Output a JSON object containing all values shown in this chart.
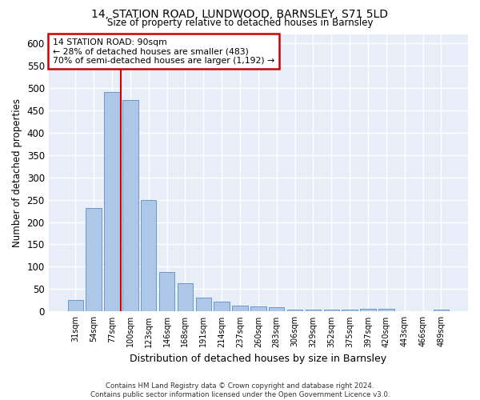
{
  "title1": "14, STATION ROAD, LUNDWOOD, BARNSLEY, S71 5LD",
  "title2": "Size of property relative to detached houses in Barnsley",
  "xlabel": "Distribution of detached houses by size in Barnsley",
  "ylabel": "Number of detached properties",
  "categories": [
    "31sqm",
    "54sqm",
    "77sqm",
    "100sqm",
    "123sqm",
    "146sqm",
    "168sqm",
    "191sqm",
    "214sqm",
    "237sqm",
    "260sqm",
    "283sqm",
    "306sqm",
    "329sqm",
    "352sqm",
    "375sqm",
    "397sqm",
    "420sqm",
    "443sqm",
    "466sqm",
    "489sqm"
  ],
  "values": [
    26,
    231,
    490,
    472,
    249,
    88,
    63,
    31,
    23,
    13,
    11,
    9,
    5,
    4,
    4,
    4,
    6,
    6,
    1,
    1,
    5
  ],
  "bar_color": "#aec6e8",
  "bar_edge_color": "#5a8fc2",
  "annotation_box_color": "#cc0000",
  "background_color": "#e8eef8",
  "grid_color": "#ffffff",
  "annotation_text_line1": "14 STATION ROAD: 90sqm",
  "annotation_text_line2": "← 28% of detached houses are smaller (483)",
  "annotation_text_line3": "70% of semi-detached houses are larger (1,192) →",
  "footer_text": "Contains HM Land Registry data © Crown copyright and database right 2024.\nContains public sector information licensed under the Open Government Licence v3.0.",
  "ylim": [
    0,
    620
  ],
  "yticks": [
    0,
    50,
    100,
    150,
    200,
    250,
    300,
    350,
    400,
    450,
    500,
    550,
    600
  ]
}
